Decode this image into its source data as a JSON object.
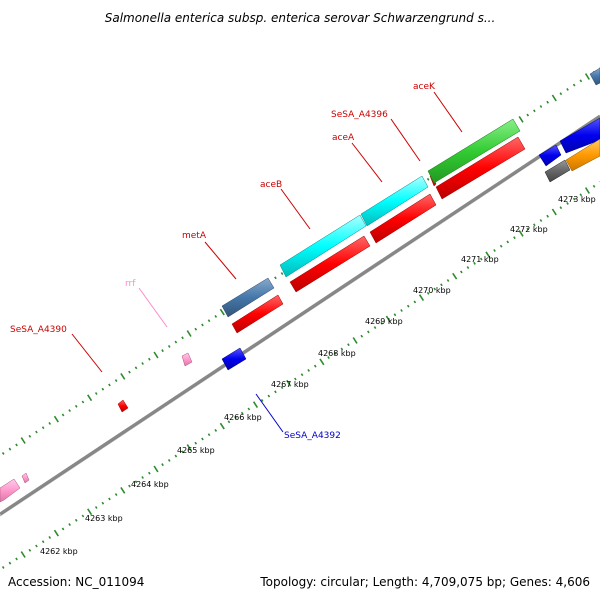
{
  "title": "Salmonella enterica subsp. enterica serovar Schwarzengrund s...",
  "footer": {
    "accession": "Accession: NC_011094",
    "summary": "Topology: circular; Length: 4,709,075 bp; Genes: 4,606"
  },
  "tick_labels": [
    "4262 kbp",
    "4263 kbp",
    "4264 kbp",
    "4265 kbp",
    "4266 kbp",
    "4267 kbp",
    "4268 kbp",
    "4269 kbp",
    "4270 kbp",
    "4271 kbp",
    "4272 kbp",
    "4273 kbp"
  ],
  "gene_labels": [
    {
      "name": "SeSA_A4390",
      "color": "#cc0000"
    },
    {
      "name": "rrf",
      "color": "#ff88cc"
    },
    {
      "name": "metA",
      "color": "#cc0000"
    },
    {
      "name": "aceB",
      "color": "#cc0000"
    },
    {
      "name": "aceA",
      "color": "#cc0000"
    },
    {
      "name": "SeSA_A4396",
      "color": "#cc0000"
    },
    {
      "name": "aceK",
      "color": "#cc0000"
    },
    {
      "name": "SeSA_A4392",
      "color": "#0000cc"
    }
  ],
  "colors": {
    "backbone": "#888888",
    "tick": "#2e8b2e",
    "cds": "#ff0000",
    "gene": "#3366aa",
    "rrna": "#ff99cc",
    "trna": "#00ffff",
    "other": "#33cc33",
    "reverse": "#0000ff"
  }
}
